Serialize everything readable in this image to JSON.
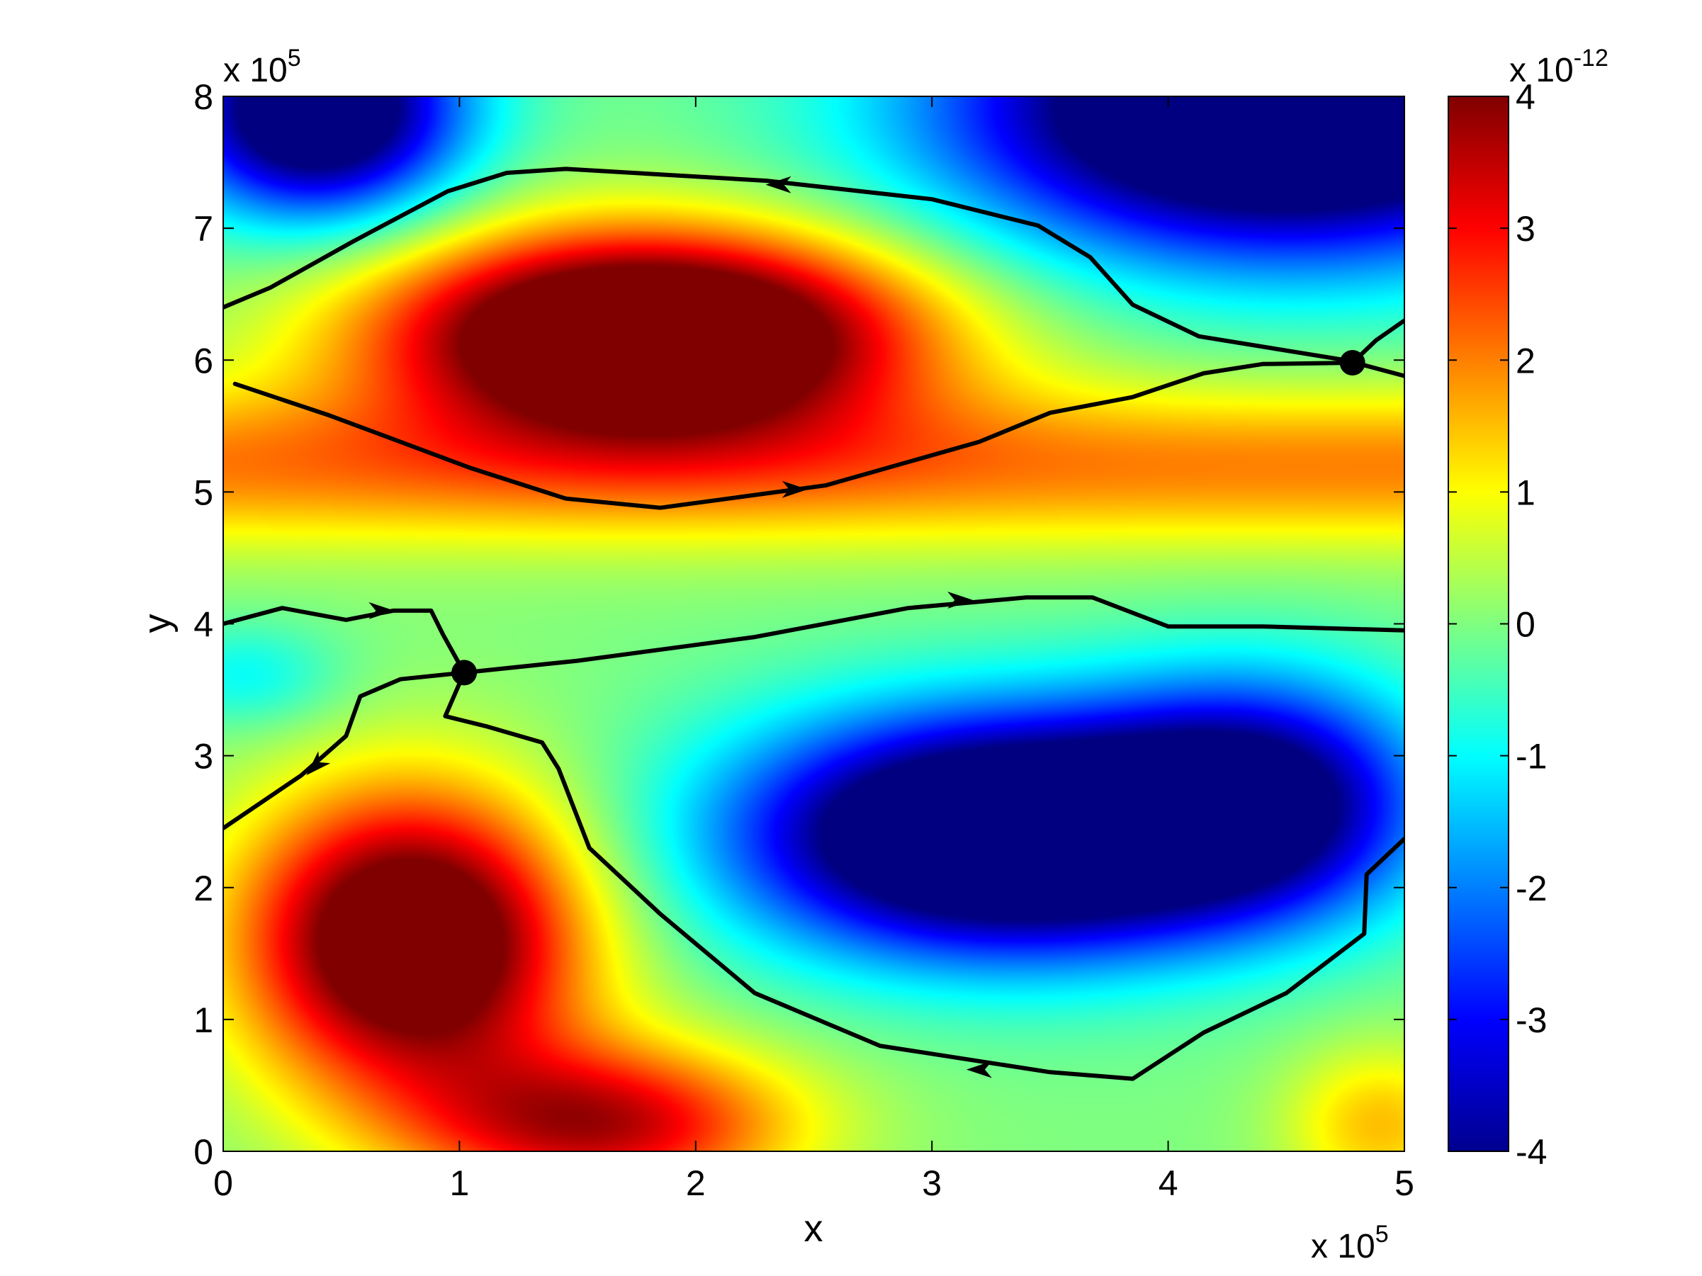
{
  "chart_data": {
    "type": "heatmap",
    "title": "",
    "xlabel": "x",
    "ylabel": "y",
    "x_multiplier": {
      "base": "x 10",
      "exponent": "5"
    },
    "y_multiplier": {
      "base": "x 10",
      "exponent": "5"
    },
    "xlim": [
      0,
      500000
    ],
    "ylim": [
      0,
      800000
    ],
    "xticks": [
      {
        "value": 0,
        "label": "0"
      },
      {
        "value": 100000,
        "label": "1"
      },
      {
        "value": 200000,
        "label": "2"
      },
      {
        "value": 300000,
        "label": "3"
      },
      {
        "value": 400000,
        "label": "4"
      },
      {
        "value": 500000,
        "label": "5"
      }
    ],
    "yticks": [
      {
        "value": 0,
        "label": "0"
      },
      {
        "value": 100000,
        "label": "1"
      },
      {
        "value": 200000,
        "label": "2"
      },
      {
        "value": 300000,
        "label": "3"
      },
      {
        "value": 400000,
        "label": "4"
      },
      {
        "value": 500000,
        "label": "5"
      },
      {
        "value": 600000,
        "label": "6"
      },
      {
        "value": 700000,
        "label": "7"
      },
      {
        "value": 800000,
        "label": "8"
      }
    ],
    "colorbar": {
      "colormap": "jet",
      "clim": [
        -4e-12,
        4e-12
      ],
      "multiplier": {
        "base": "x 10",
        "exponent": "-12"
      },
      "ticks": [
        {
          "value": -4e-12,
          "label": "-4"
        },
        {
          "value": -3e-12,
          "label": "-3"
        },
        {
          "value": -2e-12,
          "label": "-2"
        },
        {
          "value": -1e-12,
          "label": "-1"
        },
        {
          "value": 0,
          "label": "0"
        },
        {
          "value": 1e-12,
          "label": "1"
        },
        {
          "value": 2e-12,
          "label": "2"
        },
        {
          "value": 3e-12,
          "label": "3"
        },
        {
          "value": 4e-12,
          "label": "4"
        }
      ]
    },
    "field_features": [
      {
        "kind": "max",
        "x": 180000,
        "y": 620000,
        "sx": 110000,
        "sy": 75000,
        "amp": 6.5
      },
      {
        "kind": "max",
        "x": 80000,
        "y": 160000,
        "sx": 70000,
        "sy": 110000,
        "amp": 5.5
      },
      {
        "kind": "max",
        "x": 160000,
        "y": 20000,
        "sx": 80000,
        "sy": 60000,
        "amp": 3.5
      },
      {
        "kind": "min",
        "x": 330000,
        "y": 240000,
        "sx": 110000,
        "sy": 90000,
        "amp": -6.5
      },
      {
        "kind": "min",
        "x": 440000,
        "y": 270000,
        "sx": 70000,
        "sy": 90000,
        "amp": -3.5
      },
      {
        "kind": "min",
        "x": 40000,
        "y": 790000,
        "sx": 60000,
        "sy": 80000,
        "amp": -5.5
      },
      {
        "kind": "min",
        "x": 450000,
        "y": 790000,
        "sx": 140000,
        "sy": 110000,
        "amp": -6.5
      },
      {
        "kind": "min",
        "x": 10000,
        "y": 360000,
        "sx": 40000,
        "sy": 40000,
        "amp": -1.0
      },
      {
        "kind": "max",
        "x": 490000,
        "y": 20000,
        "sx": 40000,
        "sy": 60000,
        "amp": 1.5
      },
      {
        "kind": "band",
        "y": 520000,
        "sy": 60000,
        "amp": 2.0
      }
    ],
    "streamlines": [
      {
        "name": "upper",
        "points": [
          [
            0,
            640000
          ],
          [
            20000,
            655000
          ],
          [
            55000,
            690000
          ],
          [
            95000,
            728000
          ],
          [
            120000,
            742000
          ],
          [
            145000,
            745000
          ],
          [
            230000,
            736000
          ],
          [
            300000,
            722000
          ],
          [
            345000,
            702000
          ],
          [
            367000,
            678000
          ],
          [
            385000,
            642000
          ],
          [
            413000,
            618000
          ],
          [
            475000,
            600000
          ],
          [
            500000,
            588000
          ]
        ]
      },
      {
        "name": "middle-upper",
        "points": [
          [
            5000,
            582000
          ],
          [
            45000,
            558000
          ],
          [
            105000,
            518000
          ],
          [
            145000,
            495000
          ],
          [
            185000,
            488000
          ],
          [
            255000,
            505000
          ],
          [
            320000,
            538000
          ],
          [
            350000,
            560000
          ],
          [
            385000,
            572000
          ],
          [
            415000,
            590000
          ],
          [
            440000,
            597000
          ],
          [
            478000,
            598000
          ],
          [
            488000,
            615000
          ],
          [
            500000,
            630000
          ]
        ]
      },
      {
        "name": "middle-lower",
        "points": [
          [
            0,
            400000
          ],
          [
            25000,
            412000
          ],
          [
            52000,
            403000
          ],
          [
            72000,
            410000
          ],
          [
            88000,
            410000
          ],
          [
            93000,
            392000
          ],
          [
            102000,
            363000
          ],
          [
            150000,
            372000
          ],
          [
            225000,
            390000
          ],
          [
            290000,
            412000
          ],
          [
            340000,
            420000
          ],
          [
            368000,
            420000
          ],
          [
            400000,
            398000
          ],
          [
            440000,
            398000
          ],
          [
            500000,
            395000
          ]
        ]
      },
      {
        "name": "lower-left",
        "points": [
          [
            0,
            245000
          ],
          [
            33000,
            285000
          ],
          [
            52000,
            315000
          ],
          [
            58000,
            345000
          ],
          [
            75000,
            358000
          ],
          [
            102000,
            363000
          ],
          [
            94000,
            330000
          ],
          [
            112000,
            322000
          ],
          [
            135000,
            310000
          ],
          [
            142000,
            290000
          ],
          [
            155000,
            230000
          ],
          [
            185000,
            180000
          ],
          [
            225000,
            120000
          ],
          [
            278000,
            80000
          ],
          [
            350000,
            60000
          ],
          [
            385000,
            55000
          ],
          [
            415000,
            90000
          ],
          [
            450000,
            120000
          ],
          [
            483000,
            165000
          ],
          [
            484000,
            210000
          ],
          [
            500000,
            237000
          ]
        ]
      }
    ],
    "arrows": [
      {
        "x": 235000,
        "y": 733000,
        "dir": "left"
      },
      {
        "x": 242000,
        "y": 502000,
        "dir": "right"
      },
      {
        "x": 312000,
        "y": 418000,
        "dir": "right"
      },
      {
        "x": 67000,
        "y": 410000,
        "dir": "right"
      },
      {
        "x": 39000,
        "y": 292000,
        "dir": "down-left"
      },
      {
        "x": 320000,
        "y": 62000,
        "dir": "left"
      }
    ],
    "critical_points": [
      {
        "x": 102000,
        "y": 363000
      },
      {
        "x": 478000,
        "y": 598000
      }
    ]
  }
}
